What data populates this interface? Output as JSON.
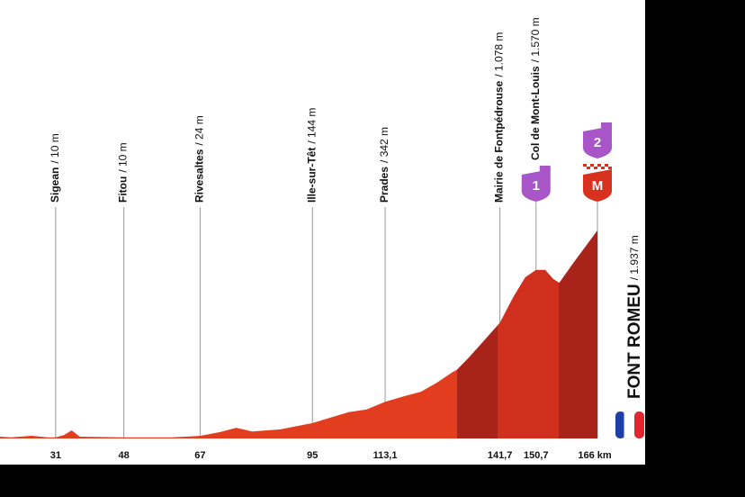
{
  "chart_data": {
    "type": "area",
    "x": [
      14,
      20,
      25,
      29,
      31,
      33,
      35,
      37,
      48,
      60,
      67,
      72,
      76,
      80,
      87,
      95,
      100,
      104,
      108.5,
      113.1,
      118,
      122,
      126,
      130,
      131,
      134,
      137,
      141.7,
      145,
      148,
      150.7,
      153,
      155,
      156.5,
      160,
      166
    ],
    "values": [
      25,
      10,
      25,
      10,
      10,
      30,
      75,
      17,
      10,
      10,
      24,
      60,
      100,
      65,
      85,
      144,
      200,
      245,
      270,
      342,
      395,
      435,
      520,
      620,
      640,
      755,
      880,
      1078,
      1315,
      1500,
      1570,
      1570,
      1485,
      1450,
      1635,
      1937
    ],
    "color": "#e23d1f",
    "xlim": [
      14,
      166
    ],
    "ylim": [
      0,
      2000
    ],
    "xticks": [
      31,
      48,
      67,
      95,
      {
        "value": 113.1,
        "label": "113,1"
      },
      {
        "value": 141.7,
        "label": "141,7"
      },
      {
        "value": 150.7,
        "label": "150,7"
      },
      {
        "value": 166,
        "label": "166 km"
      }
    ],
    "waypoints": [
      {
        "name": "Sigean",
        "elevation": "/ 10 m"
      },
      {
        "name": "Fitou",
        "elevation": "/ 10 m"
      },
      {
        "name": "Rivesaltes",
        "elevation": "/ 24 m"
      },
      {
        "name": "Ille-sur-Têt",
        "elevation": "/ 144 m"
      },
      {
        "name": "Prades",
        "elevation": "/ 342 m"
      },
      {
        "name": "Mairie de Fontpédrouse",
        "elevation": "/ 1.078 m"
      },
      {
        "name": "Col de Mont-Louis",
        "elevation": "/ 1.570 m",
        "badge": "1"
      }
    ],
    "finish": {
      "name": "FONT ROMEU",
      "elevation": "/ 1.937 m",
      "badges": [
        "2",
        "M"
      ]
    }
  }
}
